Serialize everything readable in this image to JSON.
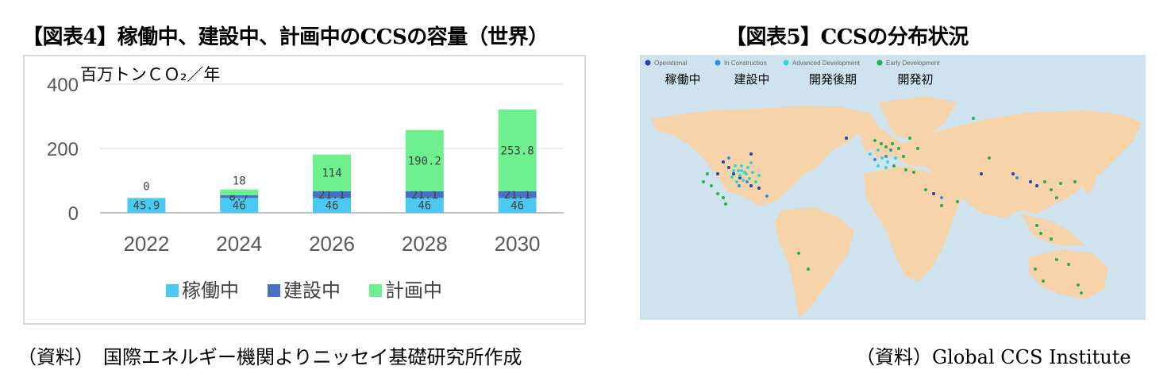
{
  "titles": {
    "fig4": "【図表4】稼働中、建設中、計画中のCCSの容量（世界）",
    "fig5": "【図表5】CCSの分布状況"
  },
  "sources": {
    "left": "（資料）　国際エネルギー機関よりニッセイ基礎研究所作成",
    "right": "（資料）Global CCS Institute"
  },
  "chart_data": [
    {
      "type": "bar",
      "stacked": true,
      "title": "",
      "ylabel": "百万トンＣＯ₂／年",
      "xlabel": "",
      "ylim": [
        0,
        400
      ],
      "yticks": [
        0,
        200,
        400
      ],
      "grid": true,
      "legend_position": "bottom",
      "categories": [
        "2022",
        "2024",
        "2026",
        "2028",
        "2030"
      ],
      "series": [
        {
          "name": "稼働中",
          "color": "#4cc9f0",
          "values": [
            45.9,
            46,
            46,
            46,
            46
          ],
          "labels": [
            "45.9",
            "46",
            "46",
            "46",
            "46"
          ]
        },
        {
          "name": "建設中",
          "color": "#4472c4",
          "values": [
            0,
            8.7,
            21.1,
            21.1,
            21.1
          ],
          "labels": [
            "0",
            "8.7",
            "21.1",
            "21.1",
            "21.1"
          ]
        },
        {
          "name": "計画中",
          "color": "#6ef08f",
          "values": [
            0,
            18,
            114,
            190.2,
            253.8
          ],
          "labels": [
            "",
            "18",
            "114",
            "190.2",
            "253.8"
          ]
        }
      ]
    },
    {
      "type": "scatter",
      "title": "",
      "legend_position": "top-left",
      "legend": [
        {
          "name": "Operational",
          "label_ja": "稼働中",
          "color": "#1f3fb6"
        },
        {
          "name": "In Construction",
          "label_ja": "建設中",
          "color": "#2f8fe0"
        },
        {
          "name": "Advanced Development",
          "label_ja": "開発後期",
          "color": "#2fd9d9"
        },
        {
          "name": "Early Development",
          "label_ja": "開発初",
          "color": "#22b24c"
        }
      ]
    }
  ],
  "map": {
    "ocean_color": "#cfe3ee",
    "land_color": "#f6d3a9"
  }
}
